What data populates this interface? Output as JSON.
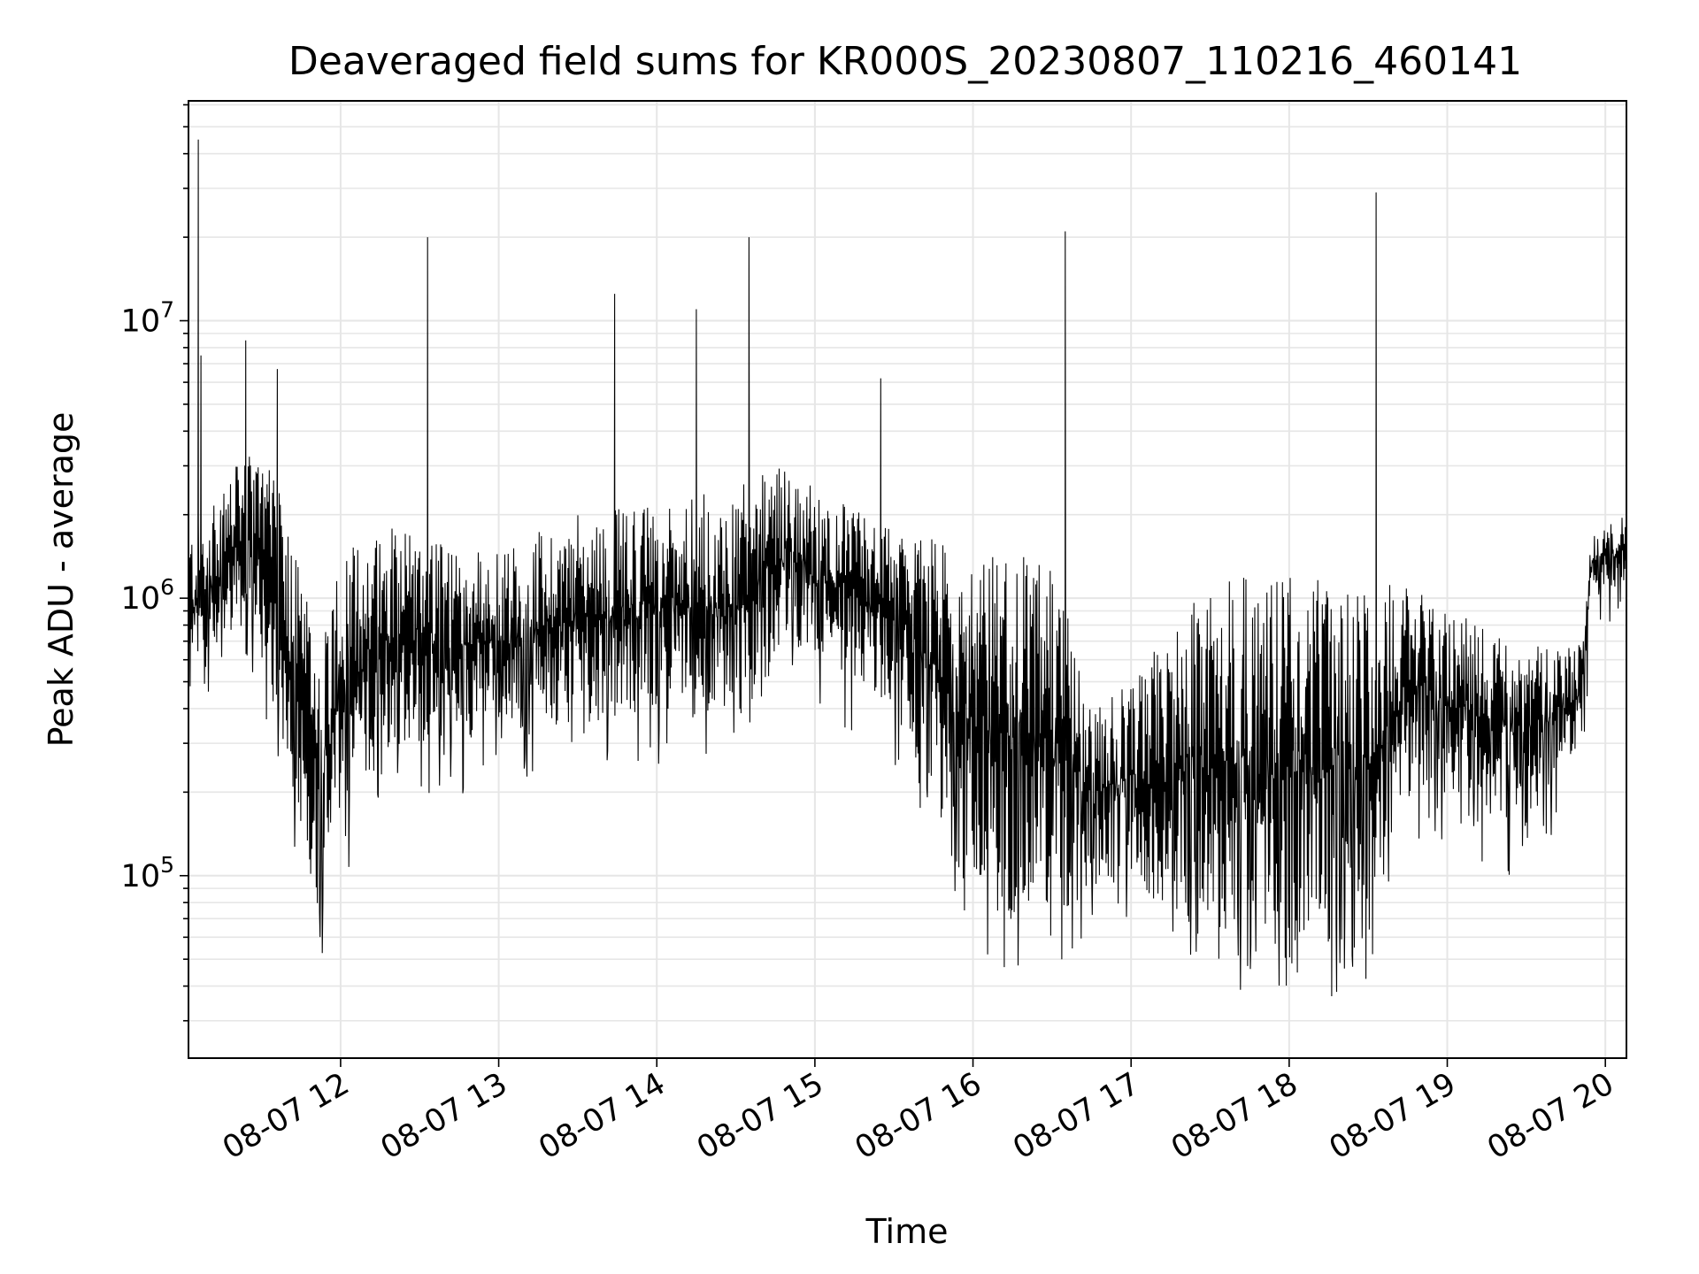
{
  "chart_data": {
    "type": "line",
    "title": "Deaveraged field sums for KR000S_20230807_110216_460141",
    "xlabel": "Time",
    "ylabel": "Peak ADU - average",
    "yscale": "log",
    "grid": true,
    "line_color": "#000000",
    "grid_color": "#e6e6e6",
    "xlim": [
      "2023-08-07 11:02:16",
      "2023-08-07 20:08:00"
    ],
    "ylim": [
      22000,
      62000000
    ],
    "x_ticks": [
      {
        "t": "2023-08-07 12:00",
        "label": "08-07 12"
      },
      {
        "t": "2023-08-07 13:00",
        "label": "08-07 13"
      },
      {
        "t": "2023-08-07 14:00",
        "label": "08-07 14"
      },
      {
        "t": "2023-08-07 15:00",
        "label": "08-07 15"
      },
      {
        "t": "2023-08-07 16:00",
        "label": "08-07 16"
      },
      {
        "t": "2023-08-07 17:00",
        "label": "08-07 17"
      },
      {
        "t": "2023-08-07 18:00",
        "label": "08-07 18"
      },
      {
        "t": "2023-08-07 19:00",
        "label": "08-07 19"
      },
      {
        "t": "2023-08-07 20:00",
        "label": "08-07 20"
      }
    ],
    "y_ticks": [
      {
        "value": 100000,
        "base": "10",
        "exp": "5"
      },
      {
        "value": 1000000,
        "base": "10",
        "exp": "6"
      },
      {
        "value": 10000000,
        "base": "10",
        "exp": "7"
      }
    ],
    "envelope": [
      {
        "t": "2023-08-07 11:02",
        "lo": 400000,
        "hi": 1800000
      },
      {
        "t": "2023-08-07 11:10",
        "lo": 600000,
        "hi": 2000000
      },
      {
        "t": "2023-08-07 11:20",
        "lo": 800000,
        "hi": 3000000
      },
      {
        "t": "2023-08-07 11:30",
        "lo": 700000,
        "hi": 3500000
      },
      {
        "t": "2023-08-07 11:40",
        "lo": 250000,
        "hi": 2000000
      },
      {
        "t": "2023-08-07 11:45",
        "lo": 150000,
        "hi": 1200000
      },
      {
        "t": "2023-08-07 11:52",
        "lo": 70000,
        "hi": 700000
      },
      {
        "t": "2023-08-07 12:00",
        "lo": 150000,
        "hi": 1500000
      },
      {
        "t": "2023-08-07 12:20",
        "lo": 300000,
        "hi": 2000000
      },
      {
        "t": "2023-08-07 12:45",
        "lo": 300000,
        "hi": 1500000
      },
      {
        "t": "2023-08-07 13:00",
        "lo": 350000,
        "hi": 1500000
      },
      {
        "t": "2023-08-07 13:30",
        "lo": 350000,
        "hi": 2000000
      },
      {
        "t": "2023-08-07 14:00",
        "lo": 400000,
        "hi": 2200000
      },
      {
        "t": "2023-08-07 14:30",
        "lo": 350000,
        "hi": 2500000
      },
      {
        "t": "2023-08-07 14:50",
        "lo": 700000,
        "hi": 3200000
      },
      {
        "t": "2023-08-07 15:00",
        "lo": 600000,
        "hi": 2500000
      },
      {
        "t": "2023-08-07 15:30",
        "lo": 400000,
        "hi": 1800000
      },
      {
        "t": "2023-08-07 16:00",
        "lo": 80000,
        "hi": 1500000
      },
      {
        "t": "2023-08-07 16:30",
        "lo": 60000,
        "hi": 1400000
      },
      {
        "t": "2023-08-07 16:45",
        "lo": 90000,
        "hi": 400000
      },
      {
        "t": "2023-08-07 17:00",
        "lo": 90000,
        "hi": 500000
      },
      {
        "t": "2023-08-07 17:30",
        "lo": 60000,
        "hi": 1200000
      },
      {
        "t": "2023-08-07 18:00",
        "lo": 55000,
        "hi": 1200000
      },
      {
        "t": "2023-08-07 18:30",
        "lo": 60000,
        "hi": 1100000
      },
      {
        "t": "2023-08-07 18:45",
        "lo": 200000,
        "hi": 1200000
      },
      {
        "t": "2023-08-07 19:00",
        "lo": 200000,
        "hi": 900000
      },
      {
        "t": "2023-08-07 19:30",
        "lo": 150000,
        "hi": 700000
      },
      {
        "t": "2023-08-07 19:50",
        "lo": 300000,
        "hi": 700000
      },
      {
        "t": "2023-08-07 19:55",
        "lo": 1100000,
        "hi": 1700000
      },
      {
        "t": "2023-08-07 20:08",
        "lo": 1100000,
        "hi": 2000000
      }
    ],
    "spikes": [
      {
        "t": "2023-08-07 11:06",
        "value": 45000000
      },
      {
        "t": "2023-08-07 11:07",
        "value": 7500000
      },
      {
        "t": "2023-08-07 11:24",
        "value": 8500000
      },
      {
        "t": "2023-08-07 11:36",
        "value": 6700000
      },
      {
        "t": "2023-08-07 12:33",
        "value": 20000000
      },
      {
        "t": "2023-08-07 13:44",
        "value": 12500000
      },
      {
        "t": "2023-08-07 14:15",
        "value": 11000000
      },
      {
        "t": "2023-08-07 14:35",
        "value": 20000000
      },
      {
        "t": "2023-08-07 15:25",
        "value": 6200000
      },
      {
        "t": "2023-08-07 16:35",
        "value": 21000000
      },
      {
        "t": "2023-08-07 18:33",
        "value": 29000000
      }
    ]
  }
}
